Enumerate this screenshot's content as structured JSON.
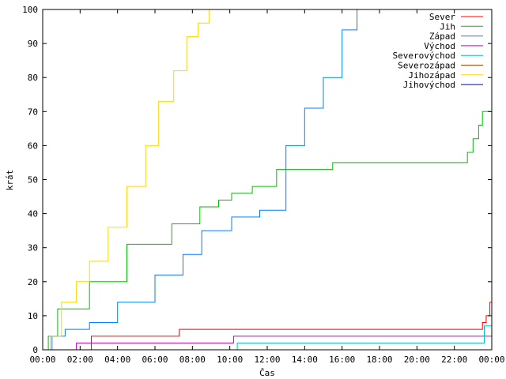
{
  "chart_data": {
    "type": "line",
    "title": "",
    "xlabel": "Čas",
    "ylabel": "krát",
    "xlim": [
      0,
      24
    ],
    "ylim": [
      0,
      100
    ],
    "x_ticks": [
      "00:00",
      "02:00",
      "04:00",
      "06:00",
      "08:00",
      "10:00",
      "12:00",
      "14:00",
      "16:00",
      "18:00",
      "20:00",
      "22:00",
      "00:00"
    ],
    "y_ticks": [
      "0",
      "10",
      "20",
      "30",
      "40",
      "50",
      "60",
      "70",
      "80",
      "90",
      "100"
    ],
    "legend_position": "top-right",
    "grid": false,
    "series": [
      {
        "name": "Sever",
        "color": "#ff0000",
        "x": [
          0,
          2.6,
          7.3,
          23.3,
          23.5,
          23.7,
          23.9,
          24
        ],
        "y": [
          0,
          4,
          6,
          6,
          8,
          10,
          14,
          14
        ]
      },
      {
        "name": "Jih",
        "color": "#00c000",
        "x": [
          0,
          0.3,
          0.8,
          1.5,
          2.5,
          3.8,
          4.5,
          6.3,
          6.9,
          8.0,
          8.4,
          9.4,
          10.1,
          11.2,
          12.1,
          12.5,
          14.8,
          15.5,
          22.5,
          22.7,
          23.0,
          23.3,
          23.5,
          23.7,
          24
        ],
        "y": [
          0,
          4,
          12,
          12,
          20,
          20,
          31,
          31,
          37,
          37,
          42,
          44,
          46,
          48,
          48,
          53,
          53,
          55,
          55,
          58,
          62,
          66,
          70,
          70,
          70
        ]
      },
      {
        "name": "Západ",
        "color": "#0080ff",
        "x": [
          0,
          0.5,
          1.2,
          1.5,
          2.5,
          4.0,
          6.0,
          7.5,
          8.5,
          9.5,
          10.1,
          11.6,
          12.0,
          13.0,
          14.0,
          15.0,
          16.0,
          16.8,
          24
        ],
        "y": [
          0,
          4,
          6,
          6,
          8,
          14,
          22,
          28,
          35,
          35,
          39,
          41,
          41,
          60,
          71,
          80,
          94,
          100,
          100
        ]
      },
      {
        "name": "Východ",
        "color": "#c000c0",
        "x": [
          0,
          1.8,
          10.2,
          24
        ],
        "y": [
          0,
          2,
          4,
          4
        ]
      },
      {
        "name": "Severovýchod",
        "color": "#00c0c0",
        "x": [
          0,
          10.4,
          23.4,
          23.6,
          24
        ],
        "y": [
          0,
          2,
          2,
          7,
          7
        ]
      },
      {
        "name": "Severozápad",
        "color": "#c04000",
        "x": [
          0,
          24
        ],
        "y": [
          0,
          0
        ]
      },
      {
        "name": "Jihozápad",
        "color": "#ffd700",
        "x": [
          0,
          0.4,
          1.0,
          1.8,
          2.5,
          3.5,
          4.5,
          5.5,
          6.2,
          7.0,
          7.7,
          8.3,
          8.9,
          24
        ],
        "y": [
          0,
          4,
          14,
          20,
          26,
          36,
          48,
          60,
          73,
          82,
          92,
          96,
          100,
          100
        ]
      },
      {
        "name": "Jihovýchod",
        "color": "#0000a0",
        "x": [
          0,
          24
        ],
        "y": [
          0,
          0
        ]
      }
    ]
  }
}
